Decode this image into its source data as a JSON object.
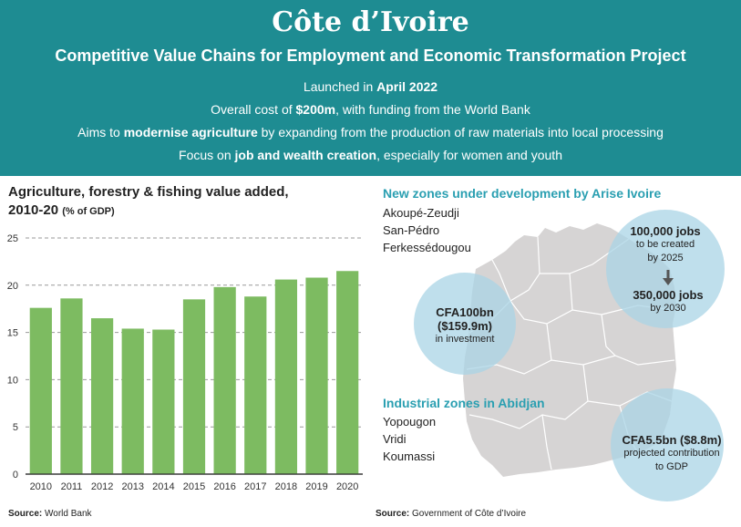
{
  "header": {
    "title": "Côte d’Ivoire",
    "subtitle": "Competitive Value Chains for Employment and Economic Transformation Project",
    "lines": [
      {
        "pre": "Launched in ",
        "bold": "April 2022",
        "post": ""
      },
      {
        "pre": "Overall cost of ",
        "bold": "$200m",
        "post": ", with funding from the World Bank"
      },
      {
        "pre": "Aims to ",
        "bold": "modernise agriculture",
        "post": " by expanding from the production of raw materials into local processing"
      },
      {
        "pre": "Focus on ",
        "bold": "job and wealth creation",
        "post": ", especially for women and youth"
      }
    ]
  },
  "chart_data": {
    "type": "bar",
    "title_line1": "Agriculture, forestry & fishing value added,",
    "title_line2": "2010-20",
    "unit": "(% of GDP)",
    "categories": [
      "2010",
      "2011",
      "2012",
      "2013",
      "2014",
      "2015",
      "2016",
      "2017",
      "2018",
      "2019",
      "2020"
    ],
    "values": [
      17.6,
      18.6,
      16.5,
      15.4,
      15.3,
      18.5,
      19.8,
      18.8,
      20.6,
      20.8,
      21.5
    ],
    "yticks": [
      0,
      5,
      10,
      15,
      20,
      25
    ],
    "ylim": [
      0,
      25
    ],
    "bar_color": "#7dbb61",
    "grid": true
  },
  "source_left": {
    "label": "Source:",
    "text": " World Bank"
  },
  "map": {
    "zones_title": "New zones under development by Arise Ivoire",
    "zones": [
      "Akoupé-Zeudji",
      "San-Pédro",
      "Ferkessédougou"
    ],
    "industrial_title": "Industrial zones in Abidjan",
    "industrial": [
      "Yopougon",
      "Vridi",
      "Koumassi"
    ],
    "jobs_bubble": {
      "big1": "100,000 jobs",
      "small1": "to be created",
      "small2": "by 2025",
      "big2": "350,000 jobs",
      "small3": "by 2030"
    },
    "investment_bubble": {
      "big1": "CFA100bn",
      "big2": "($159.9m)",
      "small": "in investment"
    },
    "gdp_bubble": {
      "big": "CFA5.5bn ($8.8m)",
      "small1": "projected contribution",
      "small2": "to GDP"
    },
    "map_color": "#d6d4d4",
    "bubble_color": "#a9d4e6"
  },
  "source_right": {
    "label": "Source:",
    "text": " Government of Côte d’Ivoire"
  }
}
